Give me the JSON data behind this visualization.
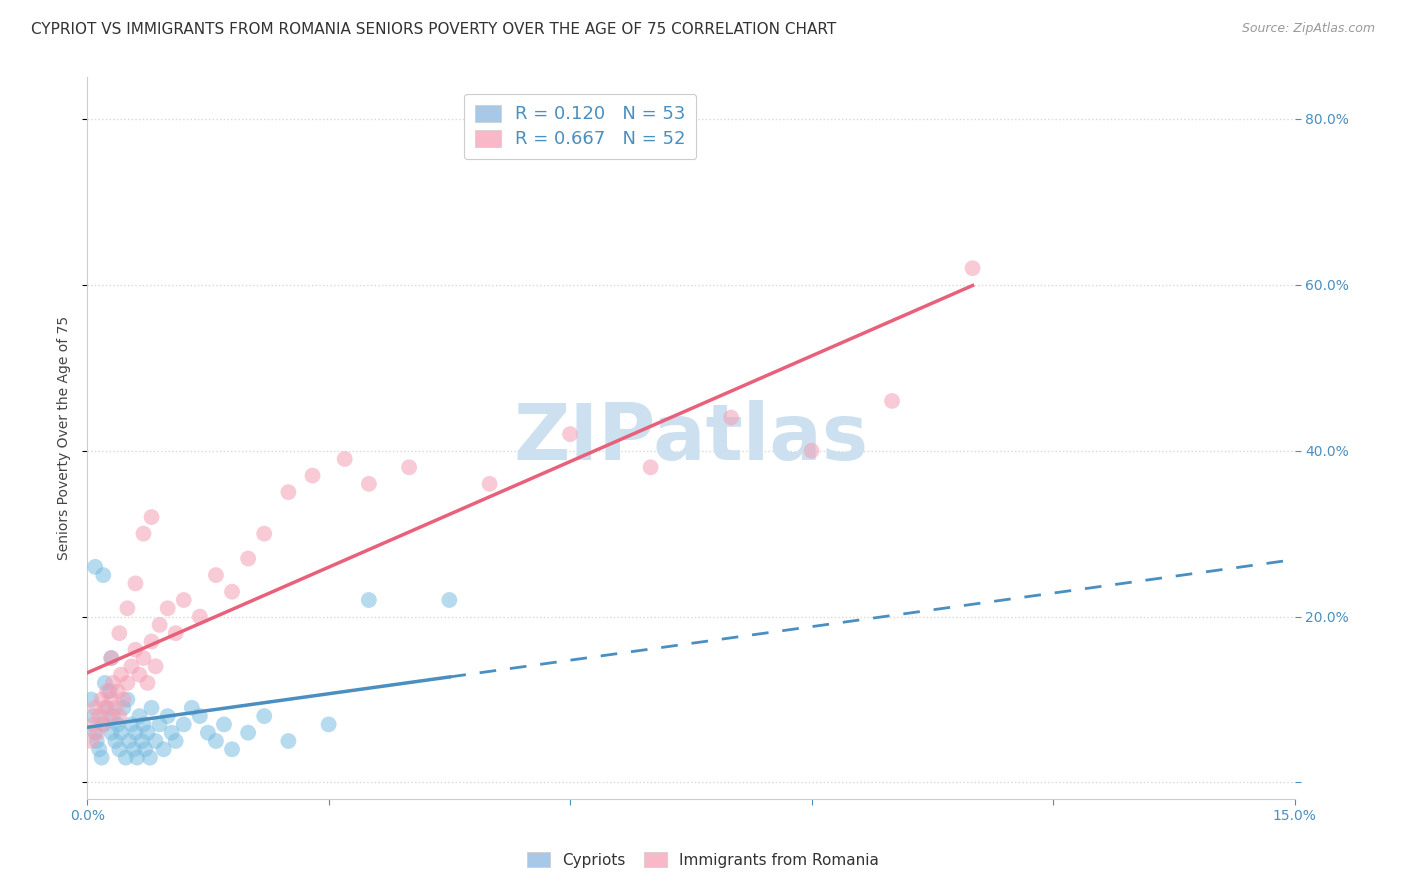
{
  "title": "CYPRIOT VS IMMIGRANTS FROM ROMANIA SENIORS POVERTY OVER THE AGE OF 75 CORRELATION CHART",
  "source": "Source: ZipAtlas.com",
  "ylabel": "Seniors Poverty Over the Age of 75",
  "xlim": [
    0.0,
    15.0
  ],
  "ylim": [
    -2.0,
    85.0
  ],
  "right_yticks": [
    0.0,
    20.0,
    40.0,
    60.0,
    80.0
  ],
  "right_yticklabels": [
    "",
    "20.0%",
    "40.0%",
    "60.0%",
    "80.0%"
  ],
  "cypriot_x": [
    0.05,
    0.08,
    0.1,
    0.12,
    0.15,
    0.18,
    0.2,
    0.22,
    0.25,
    0.28,
    0.3,
    0.32,
    0.35,
    0.38,
    0.4,
    0.42,
    0.45,
    0.48,
    0.5,
    0.52,
    0.55,
    0.58,
    0.6,
    0.62,
    0.65,
    0.68,
    0.7,
    0.72,
    0.75,
    0.78,
    0.8,
    0.85,
    0.9,
    0.95,
    1.0,
    1.05,
    1.1,
    1.2,
    1.3,
    1.4,
    1.5,
    1.6,
    1.7,
    1.8,
    2.0,
    2.2,
    2.5,
    3.0,
    3.5,
    4.5,
    0.1,
    0.2,
    0.3
  ],
  "cypriot_y": [
    10.0,
    8.0,
    6.0,
    5.0,
    4.0,
    3.0,
    7.0,
    12.0,
    9.0,
    11.0,
    6.0,
    8.0,
    5.0,
    7.0,
    4.0,
    6.0,
    9.0,
    3.0,
    10.0,
    5.0,
    7.0,
    4.0,
    6.0,
    3.0,
    8.0,
    5.0,
    7.0,
    4.0,
    6.0,
    3.0,
    9.0,
    5.0,
    7.0,
    4.0,
    8.0,
    6.0,
    5.0,
    7.0,
    9.0,
    8.0,
    6.0,
    5.0,
    7.0,
    4.0,
    6.0,
    8.0,
    5.0,
    7.0,
    22.0,
    22.0,
    26.0,
    25.0,
    15.0
  ],
  "romania_x": [
    0.05,
    0.08,
    0.1,
    0.12,
    0.15,
    0.18,
    0.2,
    0.22,
    0.25,
    0.28,
    0.3,
    0.32,
    0.35,
    0.38,
    0.4,
    0.42,
    0.45,
    0.5,
    0.55,
    0.6,
    0.65,
    0.7,
    0.75,
    0.8,
    0.85,
    0.9,
    1.0,
    1.1,
    1.2,
    1.4,
    1.6,
    1.8,
    2.0,
    2.2,
    2.5,
    2.8,
    3.2,
    3.5,
    4.0,
    5.0,
    6.0,
    7.0,
    8.0,
    9.0,
    10.0,
    11.0,
    0.3,
    0.4,
    0.5,
    0.6,
    0.7,
    0.8
  ],
  "romania_y": [
    5.0,
    7.0,
    9.0,
    6.0,
    8.0,
    10.0,
    7.0,
    9.0,
    11.0,
    8.0,
    10.0,
    12.0,
    9.0,
    11.0,
    8.0,
    13.0,
    10.0,
    12.0,
    14.0,
    16.0,
    13.0,
    15.0,
    12.0,
    17.0,
    14.0,
    19.0,
    21.0,
    18.0,
    22.0,
    20.0,
    25.0,
    23.0,
    27.0,
    30.0,
    35.0,
    37.0,
    39.0,
    36.0,
    38.0,
    36.0,
    42.0,
    38.0,
    44.0,
    40.0,
    46.0,
    62.0,
    15.0,
    18.0,
    21.0,
    24.0,
    30.0,
    32.0
  ],
  "cypriot_color": "#7bbde0",
  "romania_color": "#f4a0b5",
  "cypriot_line_color": "#4a8fc0",
  "romania_line_color": "#e8607a",
  "cypriot_R": 0.12,
  "cypriot_N": 53,
  "romania_R": 0.667,
  "romania_N": 52,
  "background_color": "#ffffff",
  "grid_color": "#d8d8d8",
  "watermark_color": "#cce0f0",
  "title_fontsize": 11,
  "axis_label_fontsize": 10,
  "tick_fontsize": 10,
  "legend_fontsize": 13
}
